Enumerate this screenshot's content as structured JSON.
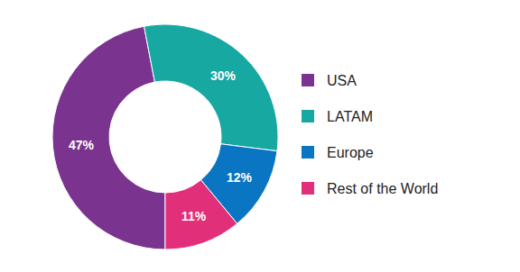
{
  "chart_data": {
    "type": "pie",
    "categories": [
      "USA",
      "LATAM",
      "Europe",
      "Rest of the World"
    ],
    "values": [
      47,
      30,
      12,
      11
    ],
    "value_labels": [
      "47%",
      "30%",
      "12%",
      "11%"
    ],
    "colors": [
      "#7b3390",
      "#17a8a2",
      "#0a75c2",
      "#e22f7a"
    ],
    "data_labels": true,
    "legend": "right"
  }
}
